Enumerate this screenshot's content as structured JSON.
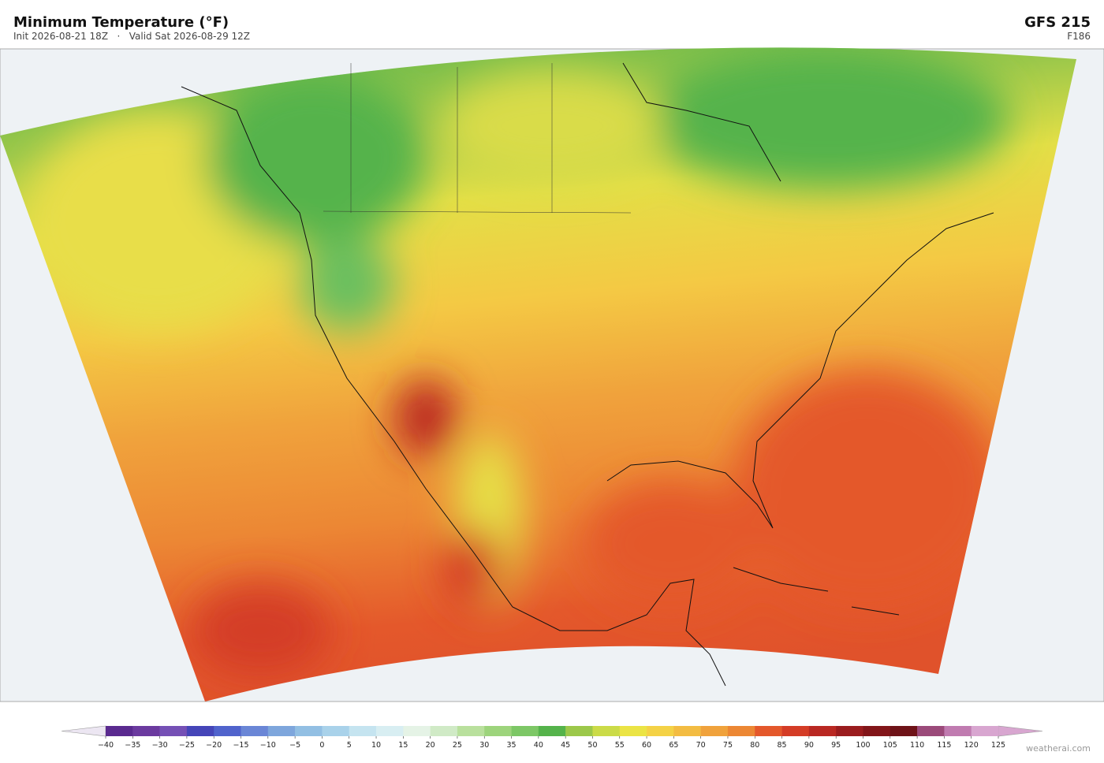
{
  "header": {
    "title": "Minimum Temperature  (°F)",
    "subtitle": "Init 2026-08-21 18Z   ·   Valid Sat 2026-08-29 12Z",
    "model": "GFS  215",
    "forecast_hour": "F186"
  },
  "colorbar": {
    "ticks": [
      {
        "value": -40,
        "label": "−40"
      },
      {
        "value": -35,
        "label": "−35"
      },
      {
        "value": -30,
        "label": "−30"
      },
      {
        "value": -25,
        "label": "−25"
      },
      {
        "value": -20,
        "label": "−20"
      },
      {
        "value": -15,
        "label": "−15"
      },
      {
        "value": -10,
        "label": "−10"
      },
      {
        "value": -5,
        "label": "−5"
      },
      0,
      5,
      10,
      15,
      20,
      25,
      30,
      35,
      40,
      45,
      50,
      55,
      60,
      65,
      70,
      75,
      80,
      85,
      90,
      95,
      100,
      105,
      110,
      115,
      120,
      125
    ],
    "colors": [
      "#5a2a8f",
      "#6b3a9f",
      "#7550b5",
      "#4545b8",
      "#5063cc",
      "#6a86d6",
      "#7ea6dc",
      "#92bfe3",
      "#a9d2ea",
      "#c5e4f0",
      "#d8eef2",
      "#e5f3e6",
      "#d0eac6",
      "#b9e09d",
      "#9dd47c",
      "#7dc766",
      "#55b34b",
      "#9cc84a",
      "#cbdb48",
      "#ebe445",
      "#f4d246",
      "#f3bc42",
      "#f0a23c",
      "#ec8734",
      "#e4582b",
      "#d43c26",
      "#b92822",
      "#9a1c1e",
      "#821519",
      "#6e1318",
      "#9b4a7a",
      "#c07bb0",
      "#d8a6d0"
    ],
    "under_color": "#ece6f2",
    "over_color": "#d8a6d0"
  },
  "footer": {
    "credit": "weatherai.com"
  }
}
